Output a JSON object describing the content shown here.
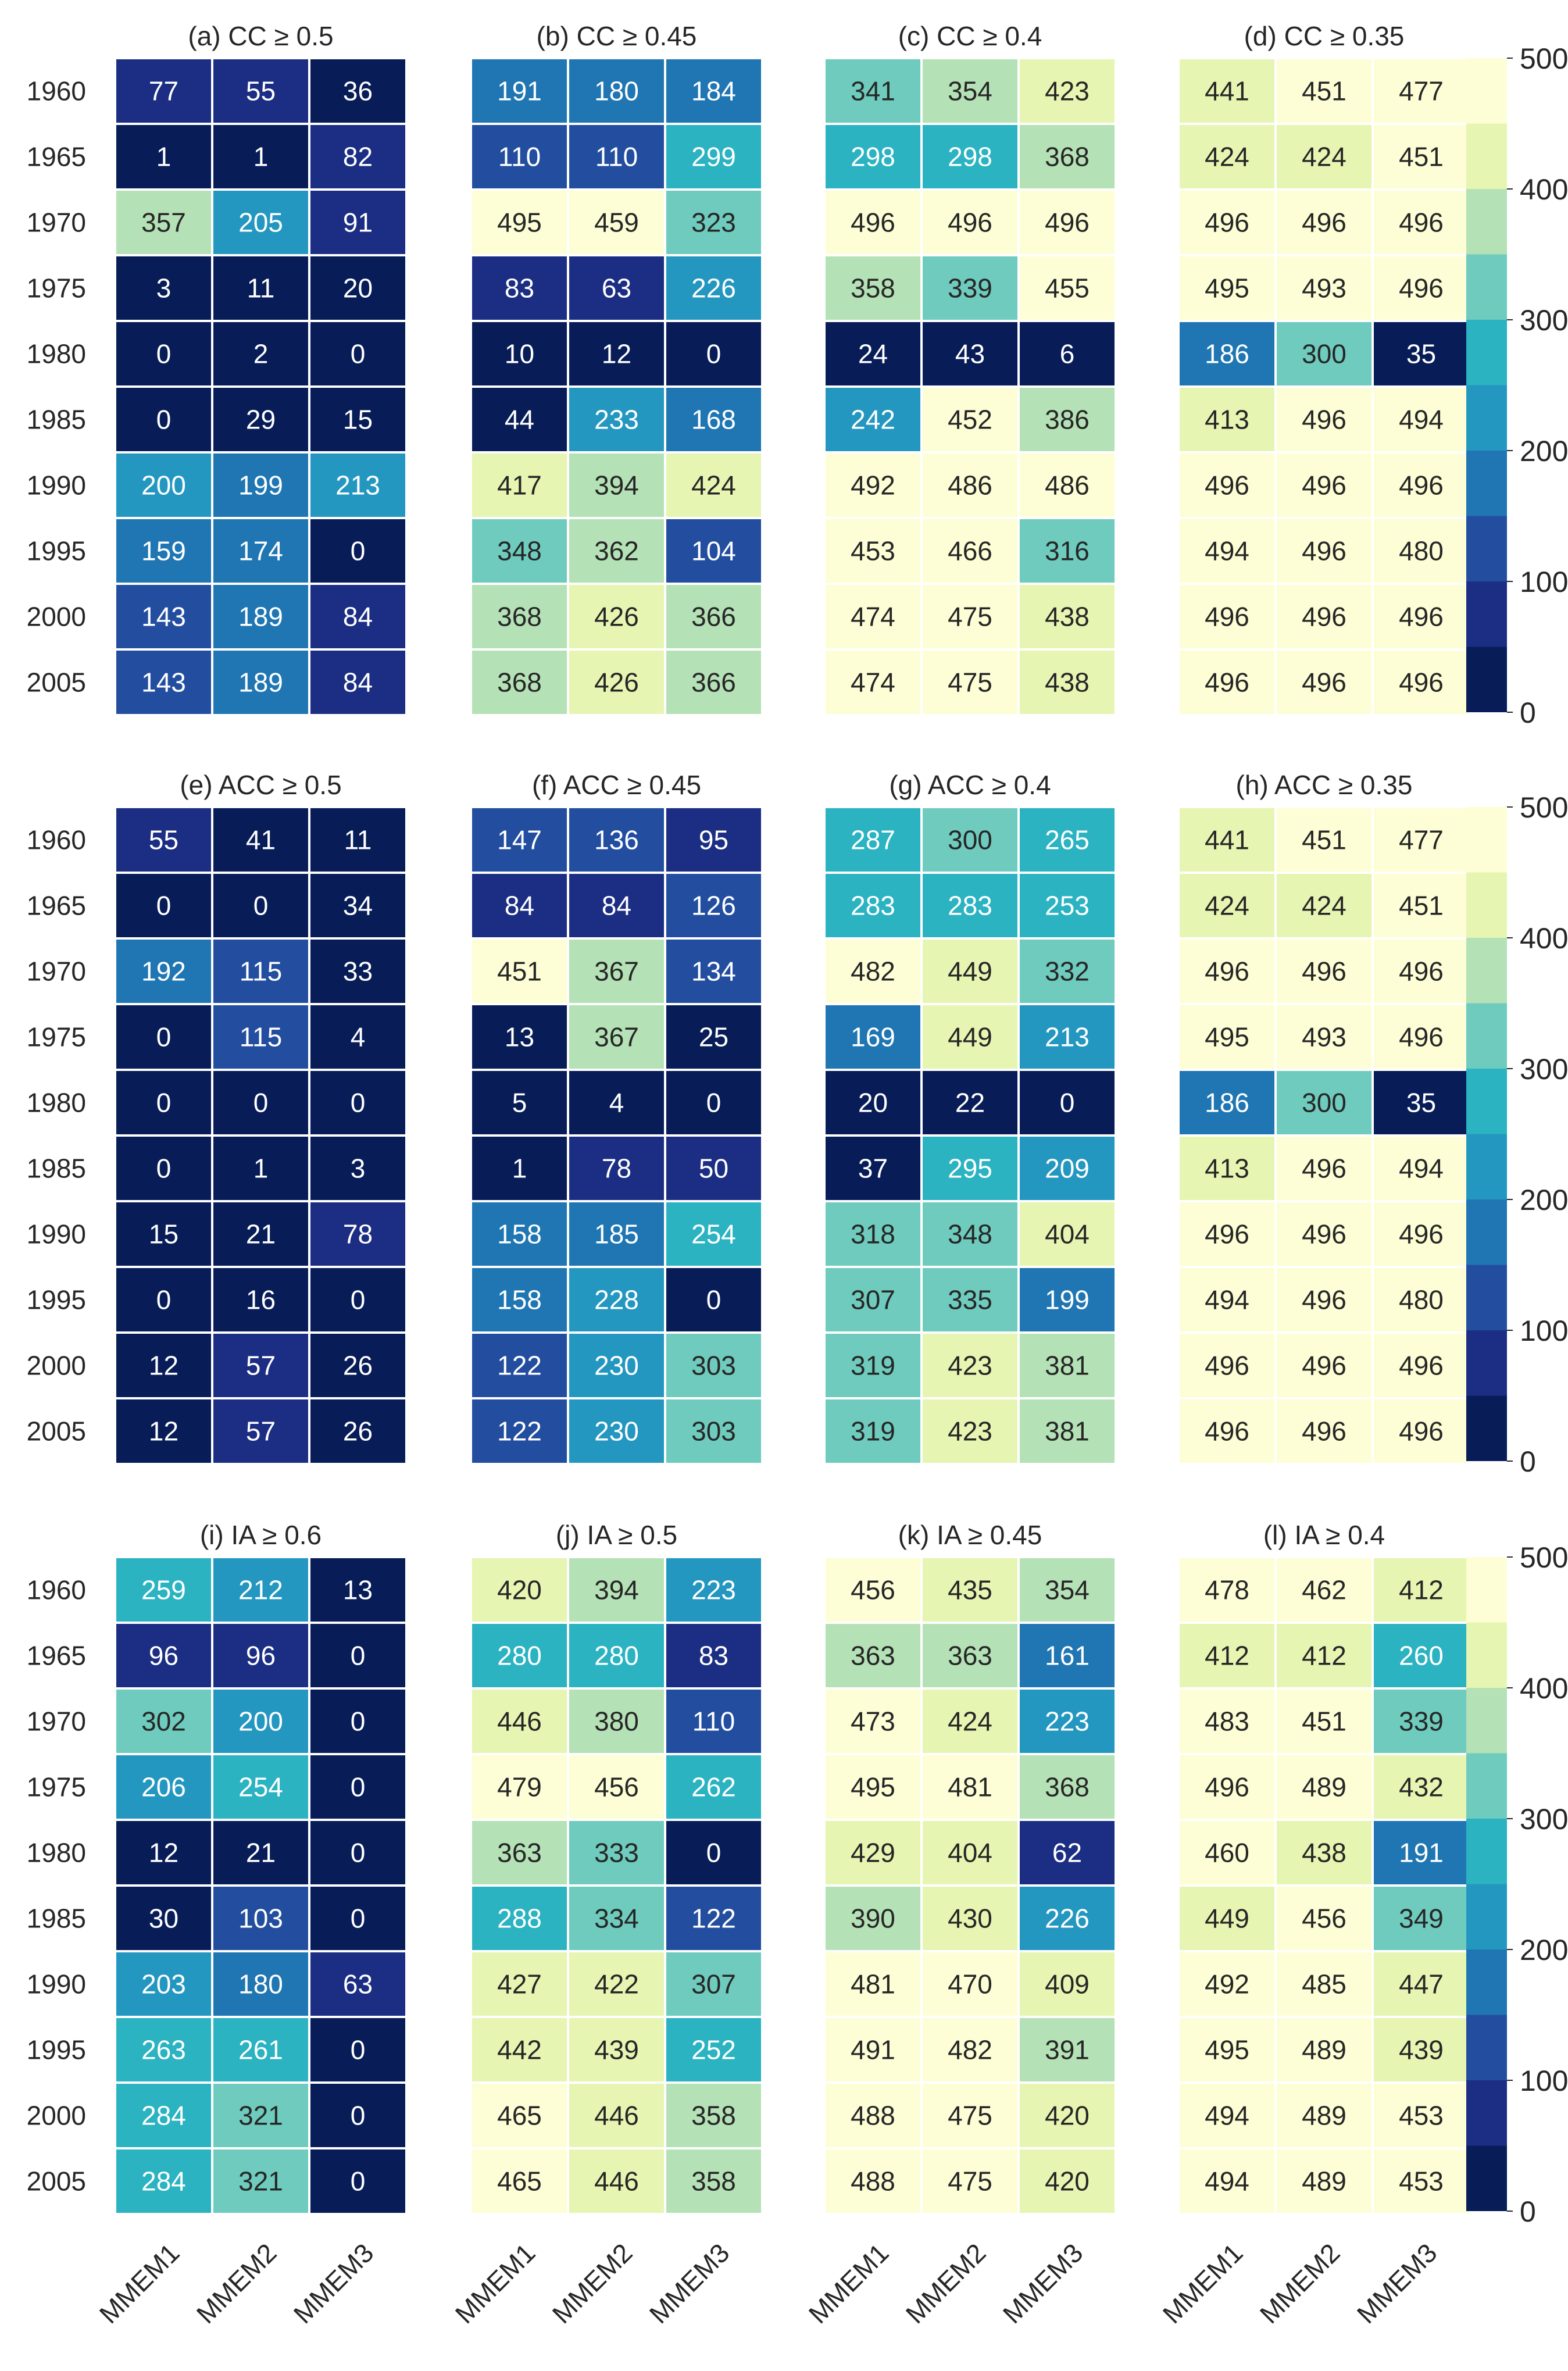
{
  "chart_data": {
    "type": "heatmap",
    "row_labels": [
      "1960",
      "1965",
      "1970",
      "1975",
      "1980",
      "1985",
      "1990",
      "1995",
      "2000",
      "2005"
    ],
    "col_labels": [
      "MMEM1",
      "MMEM2",
      "MMEM3"
    ],
    "colormap": "YlGnBu",
    "color_range": [
      0,
      500
    ],
    "colorbar_ticks": [
      "0",
      "100",
      "200",
      "300",
      "400",
      "500"
    ],
    "colorbar_levels": [
      {
        "from": 0,
        "to": 50,
        "color": "#081d58"
      },
      {
        "from": 50,
        "to": 100,
        "color": "#1c2e83"
      },
      {
        "from": 100,
        "to": 150,
        "color": "#234ea0"
      },
      {
        "from": 150,
        "to": 200,
        "color": "#1f76b3"
      },
      {
        "from": 200,
        "to": 250,
        "color": "#2497c1"
      },
      {
        "from": 250,
        "to": 300,
        "color": "#2bb3c2"
      },
      {
        "from": 300,
        "to": 350,
        "color": "#6ecbbd"
      },
      {
        "from": 350,
        "to": 400,
        "color": "#b5e1b6"
      },
      {
        "from": 400,
        "to": 450,
        "color": "#e6f5b2"
      },
      {
        "from": 450,
        "to": 500,
        "color": "#fdfed5"
      }
    ],
    "panels": [
      {
        "title": "(a) CC ≥ 0.5",
        "values": [
          [
            77,
            55,
            36
          ],
          [
            1,
            1,
            82
          ],
          [
            357,
            205,
            91
          ],
          [
            3,
            11,
            20
          ],
          [
            0,
            2,
            0
          ],
          [
            0,
            29,
            15
          ],
          [
            200,
            199,
            213
          ],
          [
            159,
            174,
            0
          ],
          [
            143,
            189,
            84
          ],
          [
            143,
            189,
            84
          ]
        ]
      },
      {
        "title": "(b) CC ≥ 0.45",
        "values": [
          [
            191,
            180,
            184
          ],
          [
            110,
            110,
            299
          ],
          [
            495,
            459,
            323
          ],
          [
            83,
            63,
            226
          ],
          [
            10,
            12,
            0
          ],
          [
            44,
            233,
            168
          ],
          [
            417,
            394,
            424
          ],
          [
            348,
            362,
            104
          ],
          [
            368,
            426,
            366
          ],
          [
            368,
            426,
            366
          ]
        ]
      },
      {
        "title": "(c) CC ≥ 0.4",
        "values": [
          [
            341,
            354,
            423
          ],
          [
            298,
            298,
            368
          ],
          [
            496,
            496,
            496
          ],
          [
            358,
            339,
            455
          ],
          [
            24,
            43,
            6
          ],
          [
            242,
            452,
            386
          ],
          [
            492,
            486,
            486
          ],
          [
            453,
            466,
            316
          ],
          [
            474,
            475,
            438
          ],
          [
            474,
            475,
            438
          ]
        ]
      },
      {
        "title": "(d) CC ≥ 0.35",
        "values": [
          [
            441,
            451,
            477
          ],
          [
            424,
            424,
            451
          ],
          [
            496,
            496,
            496
          ],
          [
            495,
            493,
            496
          ],
          [
            186,
            300,
            35
          ],
          [
            413,
            496,
            494
          ],
          [
            496,
            496,
            496
          ],
          [
            494,
            496,
            480
          ],
          [
            496,
            496,
            496
          ],
          [
            496,
            496,
            496
          ]
        ]
      },
      {
        "title": "(e) ACC ≥ 0.5",
        "values": [
          [
            55,
            41,
            11
          ],
          [
            0,
            0,
            34
          ],
          [
            192,
            115,
            33
          ],
          [
            0,
            115,
            4
          ],
          [
            0,
            0,
            0
          ],
          [
            0,
            1,
            3
          ],
          [
            15,
            21,
            78
          ],
          [
            0,
            16,
            0
          ],
          [
            12,
            57,
            26
          ],
          [
            12,
            57,
            26
          ]
        ]
      },
      {
        "title": "(f) ACC ≥ 0.45",
        "values": [
          [
            147,
            136,
            95
          ],
          [
            84,
            84,
            126
          ],
          [
            451,
            367,
            134
          ],
          [
            13,
            367,
            25
          ],
          [
            5,
            4,
            0
          ],
          [
            1,
            78,
            50
          ],
          [
            158,
            185,
            254
          ],
          [
            158,
            228,
            0
          ],
          [
            122,
            230,
            303
          ],
          [
            122,
            230,
            303
          ]
        ]
      },
      {
        "title": "(g) ACC ≥ 0.4",
        "values": [
          [
            287,
            300,
            265
          ],
          [
            283,
            283,
            253
          ],
          [
            482,
            449,
            332
          ],
          [
            169,
            449,
            213
          ],
          [
            20,
            22,
            0
          ],
          [
            37,
            295,
            209
          ],
          [
            318,
            348,
            404
          ],
          [
            307,
            335,
            199
          ],
          [
            319,
            423,
            381
          ],
          [
            319,
            423,
            381
          ]
        ]
      },
      {
        "title": "(h) ACC ≥ 0.35",
        "values": [
          [
            441,
            451,
            477
          ],
          [
            424,
            424,
            451
          ],
          [
            496,
            496,
            496
          ],
          [
            495,
            493,
            496
          ],
          [
            186,
            300,
            35
          ],
          [
            413,
            496,
            494
          ],
          [
            496,
            496,
            496
          ],
          [
            494,
            496,
            480
          ],
          [
            496,
            496,
            496
          ],
          [
            496,
            496,
            496
          ]
        ]
      },
      {
        "title": "(i) IA ≥ 0.6",
        "values": [
          [
            259,
            212,
            13
          ],
          [
            96,
            96,
            0
          ],
          [
            302,
            200,
            0
          ],
          [
            206,
            254,
            0
          ],
          [
            12,
            21,
            0
          ],
          [
            30,
            103,
            0
          ],
          [
            203,
            180,
            63
          ],
          [
            263,
            261,
            0
          ],
          [
            284,
            321,
            0
          ],
          [
            284,
            321,
            0
          ]
        ]
      },
      {
        "title": "(j) IA ≥ 0.5",
        "values": [
          [
            420,
            394,
            223
          ],
          [
            280,
            280,
            83
          ],
          [
            446,
            380,
            110
          ],
          [
            479,
            456,
            262
          ],
          [
            363,
            333,
            0
          ],
          [
            288,
            334,
            122
          ],
          [
            427,
            422,
            307
          ],
          [
            442,
            439,
            252
          ],
          [
            465,
            446,
            358
          ],
          [
            465,
            446,
            358
          ]
        ]
      },
      {
        "title": "(k) IA ≥ 0.45",
        "values": [
          [
            456,
            435,
            354
          ],
          [
            363,
            363,
            161
          ],
          [
            473,
            424,
            223
          ],
          [
            495,
            481,
            368
          ],
          [
            429,
            404,
            62
          ],
          [
            390,
            430,
            226
          ],
          [
            481,
            470,
            409
          ],
          [
            491,
            482,
            391
          ],
          [
            488,
            475,
            420
          ],
          [
            488,
            475,
            420
          ]
        ]
      },
      {
        "title": "(l) IA ≥ 0.4",
        "values": [
          [
            478,
            462,
            412
          ],
          [
            412,
            412,
            260
          ],
          [
            483,
            451,
            339
          ],
          [
            496,
            489,
            432
          ],
          [
            460,
            438,
            191
          ],
          [
            449,
            456,
            349
          ],
          [
            492,
            485,
            447
          ],
          [
            495,
            489,
            439
          ],
          [
            494,
            489,
            453
          ],
          [
            494,
            489,
            453
          ]
        ]
      }
    ]
  }
}
